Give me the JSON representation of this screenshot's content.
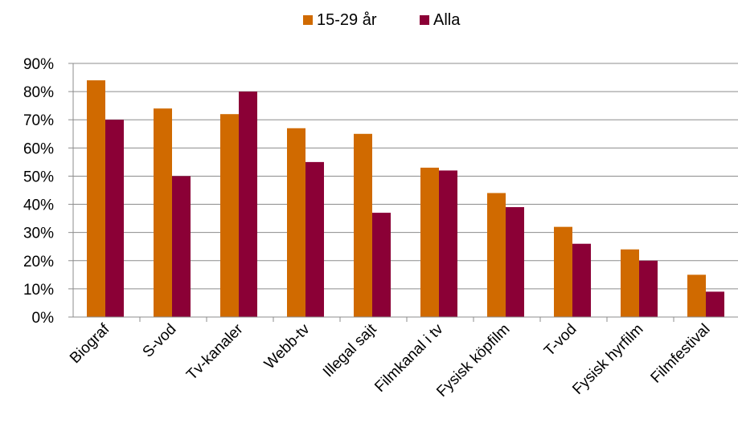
{
  "chart_data": {
    "type": "bar",
    "title": "",
    "xlabel": "",
    "ylabel": "",
    "ylim": [
      0,
      90
    ],
    "y_tick_step": 10,
    "y_tick_format": "percent",
    "grid": true,
    "legend_position": "top",
    "categories": [
      "Biograf",
      "S-vod",
      "Tv-kanaler",
      "Webb-tv",
      "Illegal sajt",
      "Filmkanal i tv",
      "Fysisk köpfilm",
      "T-vod",
      "Fysisk hyrfilm",
      "Filmfestival"
    ],
    "series": [
      {
        "name": "15-29 år",
        "color": "#D06A00",
        "values": [
          84,
          74,
          72,
          67,
          65,
          53,
          44,
          32,
          24,
          15
        ]
      },
      {
        "name": "Alla",
        "color": "#8B0036",
        "values": [
          70,
          50,
          80,
          55,
          37,
          52,
          39,
          26,
          20,
          9
        ]
      }
    ]
  }
}
